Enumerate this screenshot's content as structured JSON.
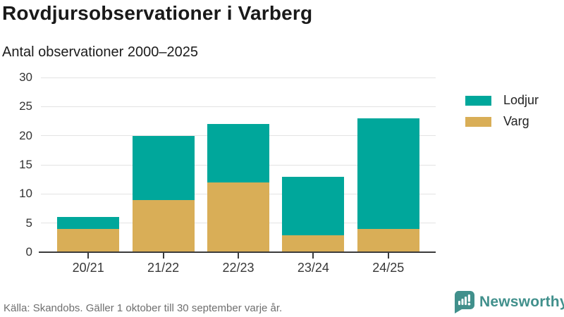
{
  "header": {
    "title": "Rovdjursobservationer i Varberg",
    "subtitle": "Antal observationer 2000–2025"
  },
  "chart_data": {
    "type": "bar",
    "stacked": true,
    "title": "Rovdjursobservationer i Varberg",
    "subtitle": "Antal observationer 2000–2025",
    "categories": [
      "20/21",
      "21/22",
      "22/23",
      "23/24",
      "24/25"
    ],
    "series": [
      {
        "name": "Varg",
        "color": "#d9ae57",
        "values": [
          4,
          9,
          12,
          3,
          4
        ]
      },
      {
        "name": "Lodjur",
        "color": "#00a79b",
        "values": [
          2,
          11,
          10,
          10,
          19
        ]
      }
    ],
    "totals": [
      6,
      20,
      22,
      13,
      23
    ],
    "xlabel": "",
    "ylabel": "",
    "ylim": [
      0,
      30
    ],
    "yticks": [
      0,
      5,
      10,
      15,
      20,
      25,
      30
    ],
    "grid": true,
    "legend_position": "right"
  },
  "legend": {
    "items": [
      {
        "label": "Lodjur",
        "color": "#00a79b"
      },
      {
        "label": "Varg",
        "color": "#d9ae57"
      }
    ]
  },
  "footer": {
    "source": "Källa: Skandobs. Gäller 1 oktober till 30 september varje år.",
    "brand": "Newsworthy"
  },
  "colors": {
    "lodjur": "#00a79b",
    "varg": "#d9ae57",
    "brand_teal": "#41908c",
    "gridline": "#e3e3e3",
    "axis": "#3b3b3b",
    "text_dark": "#191919",
    "text_muted": "#6f6f6f"
  }
}
